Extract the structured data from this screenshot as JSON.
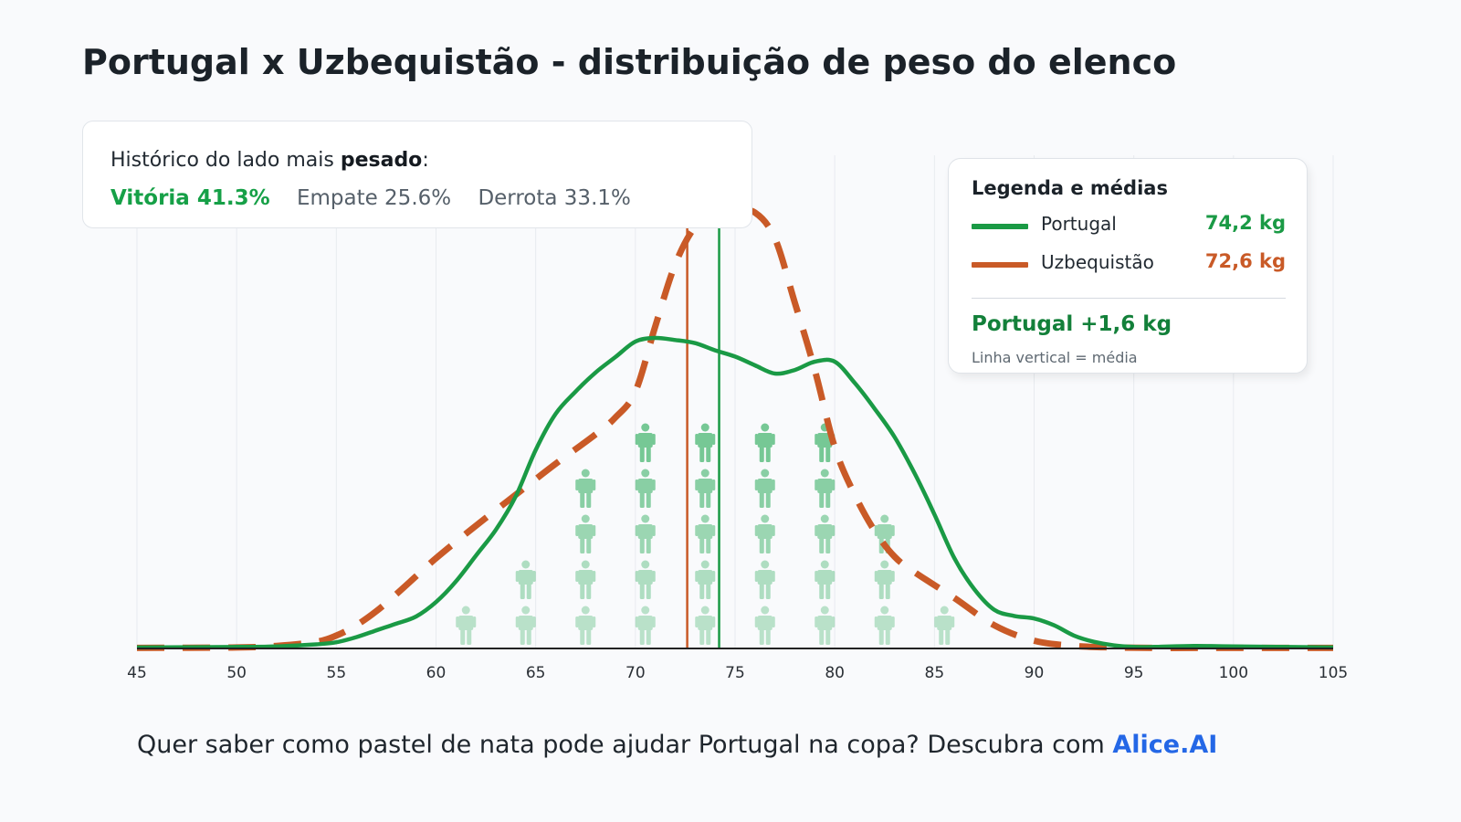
{
  "title": "Portugal x Uzbequistão - distribuição de peso do elenco",
  "history": {
    "label_prefix": "Histórico do lado mais ",
    "label_bold": "pesado",
    "label_suffix": ":",
    "win": "Vitória 41.3%",
    "draw": "Empate 25.6%",
    "loss": "Derrota 33.1%"
  },
  "legend": {
    "title": "Legenda e médias",
    "items": [
      {
        "label": "Portugal",
        "value": "74,2 kg",
        "color": "#1a9a45"
      },
      {
        "label": "Uzbequistão",
        "value": "72,6 kg",
        "color": "#c95a27"
      }
    ],
    "difference": "Portugal +1,6 kg",
    "note": "Linha vertical = média"
  },
  "footer": {
    "text": "Quer saber como pastel de nata pode ajudar Portugal na copa? Descubra com ",
    "brand": "Alice.AI"
  },
  "colors": {
    "portugal": "#1a9a45",
    "uzbekistan": "#c95a27",
    "pictogram": "#3fb36a",
    "axis": "#222222",
    "grid": "#e8ebef"
  },
  "chart_data": {
    "type": "line",
    "xlim": [
      45,
      105
    ],
    "ylim": [
      0,
      0.085
    ],
    "x_ticks": [
      45,
      50,
      55,
      60,
      65,
      70,
      75,
      80,
      85,
      90,
      95,
      100,
      105
    ],
    "series": [
      {
        "name": "Portugal",
        "style": "solid",
        "mean": 74.2,
        "x": [
          45,
          50,
          52,
          54,
          55,
          56,
          57,
          58,
          59,
          60,
          61,
          62,
          63,
          64,
          65,
          66,
          67,
          68,
          69,
          70,
          71,
          72,
          73,
          74,
          75,
          76,
          77,
          78,
          79,
          80,
          81,
          82,
          83,
          84,
          85,
          86,
          87,
          88,
          89,
          90,
          91,
          92,
          93,
          94,
          95,
          96,
          98,
          100,
          105
        ],
        "y": [
          0.0002,
          0.0003,
          0.0004,
          0.0008,
          0.0012,
          0.0022,
          0.0035,
          0.0048,
          0.0062,
          0.009,
          0.013,
          0.018,
          0.023,
          0.0295,
          0.0385,
          0.0455,
          0.0498,
          0.0535,
          0.0565,
          0.0595,
          0.0602,
          0.0598,
          0.0592,
          0.0578,
          0.0566,
          0.0549,
          0.0533,
          0.054,
          0.0556,
          0.0556,
          0.0515,
          0.0465,
          0.041,
          0.034,
          0.026,
          0.0175,
          0.0115,
          0.0075,
          0.0063,
          0.0058,
          0.0045,
          0.0025,
          0.0013,
          0.0006,
          0.0003,
          0.0003,
          0.0005,
          0.0004,
          0.0002
        ]
      },
      {
        "name": "Uzbequistão",
        "style": "dashed",
        "mean": 72.6,
        "x": [
          45,
          50,
          52,
          54,
          55,
          56,
          57,
          58,
          59,
          60,
          62,
          64,
          66,
          68,
          69,
          70,
          71,
          72,
          73,
          74,
          75,
          76,
          77,
          78,
          79,
          80,
          81,
          82,
          83,
          84,
          86,
          88,
          90,
          92,
          94,
          96,
          100,
          105
        ],
        "y": [
          0.0001,
          0.0002,
          0.0005,
          0.0013,
          0.0025,
          0.0045,
          0.0072,
          0.0105,
          0.014,
          0.0175,
          0.0238,
          0.0298,
          0.0358,
          0.0415,
          0.0448,
          0.0498,
          0.0625,
          0.0745,
          0.0818,
          0.0845,
          0.0848,
          0.0845,
          0.0795,
          0.067,
          0.054,
          0.039,
          0.0298,
          0.0228,
          0.0178,
          0.0148,
          0.0098,
          0.0045,
          0.0015,
          0.0005,
          0.0002,
          0.0001,
          0.0001,
          0.0001
        ]
      }
    ],
    "pictogram_columns": [
      {
        "x": 61.5,
        "count": 1
      },
      {
        "x": 64.5,
        "count": 2
      },
      {
        "x": 67.5,
        "count": 4
      },
      {
        "x": 70.5,
        "count": 5
      },
      {
        "x": 73.5,
        "count": 5
      },
      {
        "x": 76.5,
        "count": 5
      },
      {
        "x": 79.5,
        "count": 5
      },
      {
        "x": 82.5,
        "count": 3
      },
      {
        "x": 85.5,
        "count": 1
      }
    ]
  }
}
